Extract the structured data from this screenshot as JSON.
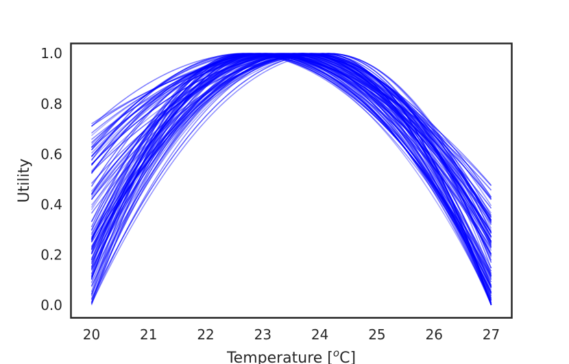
{
  "chart_data": {
    "type": "line",
    "title": "",
    "xlabel": "Temperature [",
    "xlabel_superscript": "o",
    "xlabel_suffix": "C]",
    "ylabel": "Utility",
    "xlim": [
      19.64,
      27.36
    ],
    "ylim": [
      -0.05,
      1.04
    ],
    "xticks": [
      20,
      21,
      22,
      23,
      24,
      25,
      26,
      27
    ],
    "xtick_labels": [
      "20",
      "21",
      "22",
      "23",
      "24",
      "25",
      "26",
      "27"
    ],
    "yticks": [
      0.0,
      0.2,
      0.4,
      0.6,
      0.8,
      1.0
    ],
    "ytick_labels": [
      "0.0",
      "0.2",
      "0.4",
      "0.6",
      "0.8",
      "1.0"
    ],
    "grid": false,
    "legend": "none",
    "line_color": "#0000ff",
    "series_description": "Family of about 100 concave utility curves between 20 and 27 °C, each peaking at utility 1.0 between roughly 22.6 and 24.2 °C; utility at 20 °C ranges 0.0–0.73 and at 27 °C ranges 0.0–0.48.",
    "curve_family": {
      "count": 100,
      "x_range": [
        20,
        27
      ],
      "peak_utility": 1.0,
      "peak_temp_range": [
        22.6,
        24.2
      ],
      "u_at_20_range": [
        0.0,
        0.73
      ],
      "u_at_27_range": [
        0.0,
        0.48
      ],
      "samples_per_curve": 141
    }
  }
}
